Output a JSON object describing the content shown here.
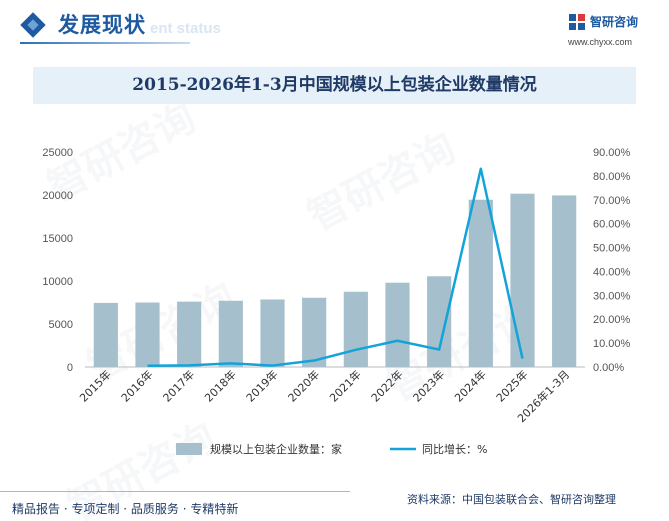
{
  "header": {
    "title": "发展现状",
    "subtitle": "ent status"
  },
  "brand": {
    "name": "智研咨询",
    "url": "www.chyxx.com"
  },
  "watermark": "智研咨询",
  "footer": {
    "tagline": "精品报告 · 专项定制 · 品质服务 · 专精特新",
    "source": "资料来源：中国包装联合会、智研咨询整理"
  },
  "colors": {
    "bar": "#a6bfcc",
    "line": "#13a3d9",
    "title_bg": "#e6f0f8",
    "accent": "#1e5aa0"
  },
  "chart_data": {
    "type": "bar",
    "title": "2015-2026年1-3月中国规模以上包装企业数量情况",
    "categories": [
      "2015年",
      "2016年",
      "2017年",
      "2018年",
      "2019年",
      "2020年",
      "2021年",
      "2022年",
      "2023年",
      "2024年",
      "2025年",
      "2026年1-3月"
    ],
    "series": [
      {
        "name": "规模以上包装企业数量：家",
        "type": "bar",
        "axis": "left",
        "values": [
          7450,
          7500,
          7600,
          7700,
          7850,
          8050,
          8750,
          9800,
          10550,
          19450,
          20150,
          19950
        ]
      },
      {
        "name": "同比增长：%",
        "type": "line",
        "axis": "right",
        "values": [
          null,
          0.5,
          0.7,
          1.5,
          0.6,
          2.7,
          7.2,
          11.0,
          7.3,
          83.0,
          3.5,
          null
        ]
      }
    ],
    "y_left": {
      "min": 0,
      "max": 25000,
      "ticks": [
        "0",
        "5000",
        "10000",
        "15000",
        "20000",
        "25000"
      ]
    },
    "y_right": {
      "min": 0,
      "max": 90,
      "ticks": [
        "0.00%",
        "10.00%",
        "20.00%",
        "30.00%",
        "40.00%",
        "50.00%",
        "60.00%",
        "70.00%",
        "80.00%",
        "90.00%"
      ]
    },
    "grid": false,
    "legend": "bottom"
  }
}
